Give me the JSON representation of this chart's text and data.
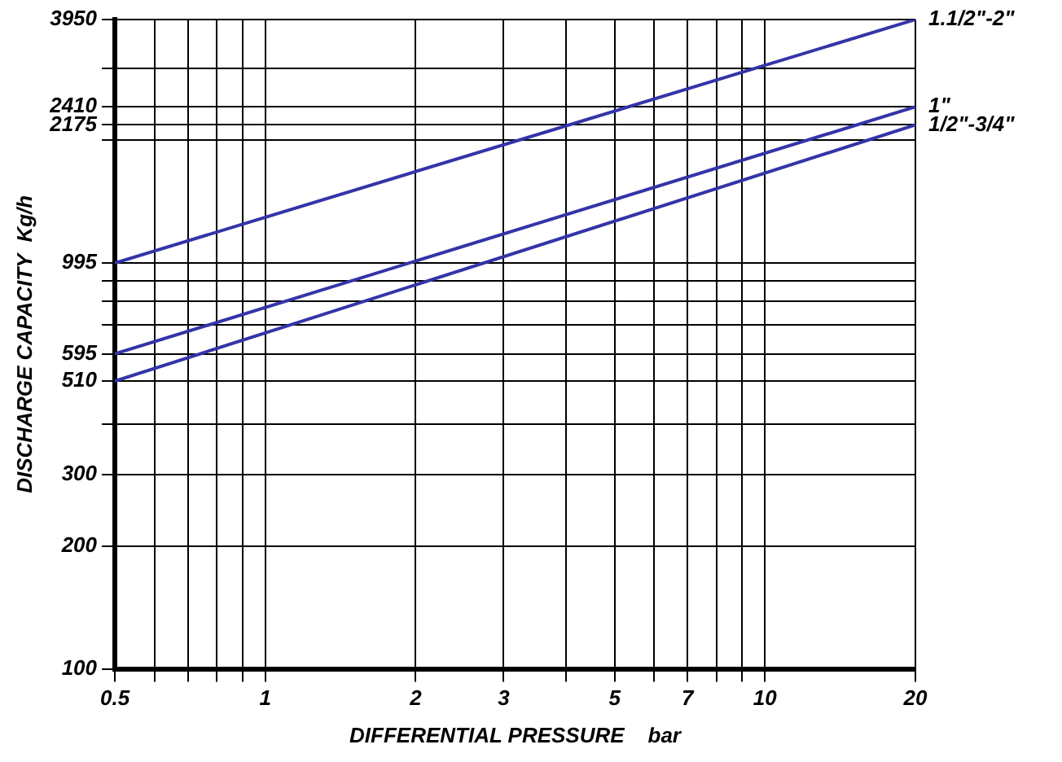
{
  "chart_data": {
    "type": "line",
    "xlabel": "DIFFERENTIAL PRESSURE    bar",
    "ylabel": "DISCHARGE CAPACITY  Kg/h",
    "log": "xy",
    "grid": true,
    "legend": false,
    "marker": "none",
    "line_style": "solid",
    "xlim": [
      0.5,
      20
    ],
    "ylim": [
      100,
      3950
    ],
    "xticks": [
      0.5,
      {
        "value": 0.6,
        "label": null
      },
      {
        "value": 0.7,
        "label": null
      },
      {
        "value": 0.8,
        "label": null
      },
      {
        "value": 0.9,
        "label": null
      },
      1,
      2,
      3,
      {
        "value": 4,
        "label": null
      },
      5,
      {
        "value": 6,
        "label": null
      },
      7,
      {
        "value": 8,
        "label": null
      },
      {
        "value": 9,
        "label": null
      },
      10,
      20
    ],
    "yticks": [
      100,
      200,
      300,
      {
        "value": 400,
        "label": null
      },
      510,
      595,
      {
        "value": 700,
        "label": null
      },
      {
        "value": 800,
        "label": null
      },
      {
        "value": 900,
        "label": null
      },
      995,
      {
        "value": 2000,
        "label": null
      },
      2175,
      2410,
      {
        "value": 3000,
        "label": null
      },
      3950
    ],
    "x": [
      0.5,
      20
    ],
    "series": [
      {
        "name": "1.1/2\"-2\"",
        "color": "#3434a8",
        "values": [
          995,
          3950
        ]
      },
      {
        "name": "1\"",
        "color": "#3434a8",
        "values": [
          595,
          2410
        ]
      },
      {
        "name": "1/2\"-3/4\"",
        "color": "#3434a8",
        "values": [
          510,
          2175
        ]
      }
    ]
  }
}
